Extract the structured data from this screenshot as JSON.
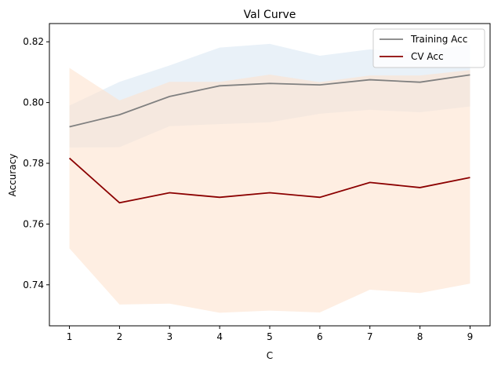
{
  "chart_data": {
    "type": "line",
    "title": "Val Curve",
    "xlabel": "C",
    "ylabel": "Accuracy",
    "x": [
      1,
      2,
      3,
      4,
      5,
      6,
      7,
      8,
      9
    ],
    "xlim": [
      0.6,
      9.4
    ],
    "ylim": [
      0.7265,
      0.826
    ],
    "xticks": [
      1,
      2,
      3,
      4,
      5,
      6,
      7,
      8,
      9
    ],
    "yticks": [
      0.74,
      0.76,
      0.78,
      0.8,
      0.82
    ],
    "ytick_labels": [
      "0.74",
      "0.76",
      "0.78",
      "0.80",
      "0.82"
    ],
    "grid": false,
    "legend_position": "top-right",
    "series": [
      {
        "name": "Training Acc",
        "color": "#808080",
        "values": [
          0.792,
          0.796,
          0.802,
          0.8055,
          0.8063,
          0.8058,
          0.8075,
          0.8067,
          0.8091
        ],
        "band_upper": [
          0.799,
          0.8068,
          0.8122,
          0.8181,
          0.8193,
          0.8154,
          0.8175,
          0.8166,
          0.8192
        ],
        "band_lower": [
          0.7852,
          0.7853,
          0.7922,
          0.7929,
          0.7935,
          0.7963,
          0.7976,
          0.7968,
          0.7987
        ],
        "band_color": "#dbe7f4"
      },
      {
        "name": "CV Acc",
        "color": "#8b0000",
        "values": [
          0.7817,
          0.767,
          0.7703,
          0.7688,
          0.7703,
          0.7688,
          0.7737,
          0.772,
          0.7753
        ],
        "band_upper": [
          0.8114,
          0.8007,
          0.8068,
          0.8068,
          0.8092,
          0.8067,
          0.8089,
          0.8089,
          0.8107
        ],
        "band_lower": [
          0.752,
          0.7335,
          0.7338,
          0.7308,
          0.7315,
          0.7309,
          0.7384,
          0.7373,
          0.7404
        ],
        "band_color": "#fde3cf"
      }
    ]
  }
}
